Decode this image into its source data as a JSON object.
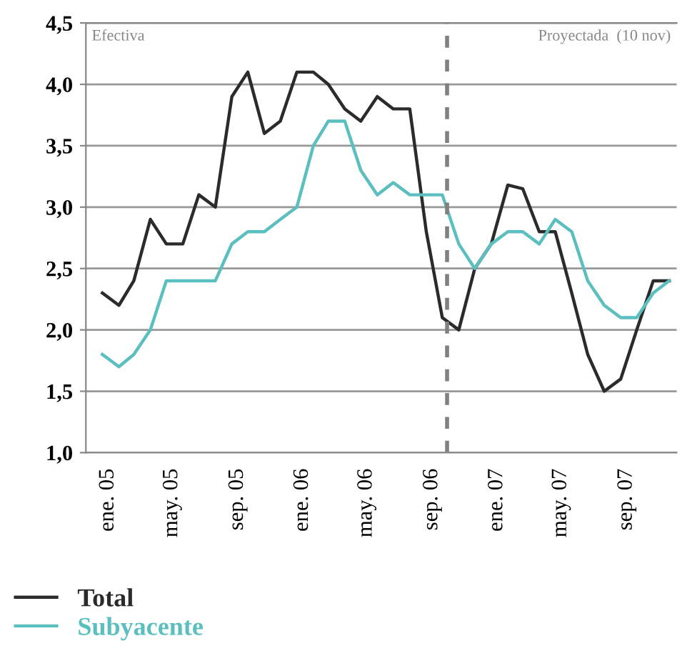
{
  "chart_data": {
    "type": "line",
    "x": [
      "2005-01",
      "2005-02",
      "2005-03",
      "2005-04",
      "2005-05",
      "2005-06",
      "2005-07",
      "2005-08",
      "2005-09",
      "2005-10",
      "2005-11",
      "2005-12",
      "2006-01",
      "2006-02",
      "2006-03",
      "2006-04",
      "2006-05",
      "2006-06",
      "2006-07",
      "2006-08",
      "2006-09",
      "2006-10",
      "2006-11",
      "2006-12",
      "2007-01",
      "2007-02",
      "2007-03",
      "2007-04",
      "2007-05",
      "2007-06",
      "2007-07",
      "2007-08",
      "2007-09",
      "2007-10",
      "2007-11",
      "2007-12"
    ],
    "series": [
      {
        "name": "Total",
        "color": "#2b2b2b",
        "values": [
          2.3,
          2.2,
          2.4,
          2.9,
          2.7,
          2.7,
          3.1,
          3.0,
          3.9,
          4.1,
          3.6,
          3.7,
          4.1,
          4.1,
          4.0,
          3.8,
          3.7,
          3.9,
          3.8,
          3.8,
          2.8,
          2.1,
          2.0,
          2.5,
          2.7,
          3.18,
          3.15,
          2.8,
          2.8,
          2.3,
          1.8,
          1.5,
          1.6,
          2.0,
          2.4,
          2.4
        ]
      },
      {
        "name": "Subyacente",
        "color": "#5bbfbf",
        "values": [
          1.8,
          1.7,
          1.8,
          2.0,
          2.4,
          2.4,
          2.4,
          2.4,
          2.7,
          2.8,
          2.8,
          2.9,
          3.0,
          3.5,
          3.7,
          3.7,
          3.3,
          3.1,
          3.2,
          3.1,
          3.1,
          3.1,
          2.7,
          2.5,
          2.7,
          2.8,
          2.8,
          2.7,
          2.9,
          2.8,
          2.4,
          2.2,
          2.1,
          2.1,
          2.3,
          2.4
        ]
      }
    ],
    "xlim": [
      "2004-12",
      "2007-12-15"
    ],
    "xticks": [
      {
        "value": "2005-01",
        "label": "ene. 05"
      },
      {
        "value": "2005-05",
        "label": "may. 05"
      },
      {
        "value": "2005-09",
        "label": "sep. 05"
      },
      {
        "value": "2006-01",
        "label": "ene. 06"
      },
      {
        "value": "2006-05",
        "label": "may. 06"
      },
      {
        "value": "2006-09",
        "label": "sep. 06"
      },
      {
        "value": "2007-01",
        "label": "ene. 07"
      },
      {
        "value": "2007-05",
        "label": "may. 07"
      },
      {
        "value": "2007-09",
        "label": "sep. 07"
      }
    ],
    "ylim": [
      1.0,
      4.5
    ],
    "yticks": [
      {
        "value": 1.0,
        "label": "1,0"
      },
      {
        "value": 1.5,
        "label": "1,5"
      },
      {
        "value": 2.0,
        "label": "2,0"
      },
      {
        "value": 2.5,
        "label": "2,5"
      },
      {
        "value": 3.0,
        "label": "3,0"
      },
      {
        "value": 3.5,
        "label": "3,5"
      },
      {
        "value": 4.0,
        "label": "4,0"
      },
      {
        "value": 4.5,
        "label": "4,5"
      }
    ],
    "ref_lines": [
      {
        "axis": "x",
        "value": "2006-10-10",
        "color": "#808080",
        "line_style": "dashed"
      }
    ],
    "annotations": [
      "Efectiva",
      "Proyectada  (10 nov)"
    ],
    "grid": "y",
    "legend": "bottom left",
    "marker": "none",
    "line_style": "solid"
  }
}
